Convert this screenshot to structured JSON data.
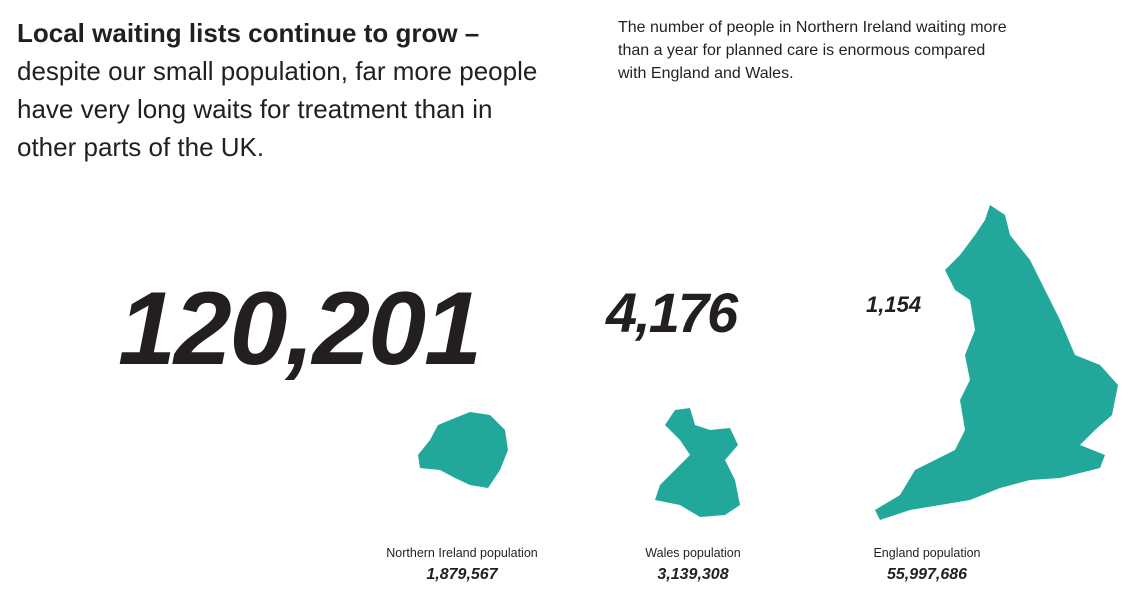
{
  "headline": {
    "bold": "Local waiting lists continue to grow –",
    "text": "despite our small population, far more people have very long waits for treatment than in other parts of the UK."
  },
  "description": "The number of people in Northern Ireland waiting more than a year for planned care is enormous compared with England and Wales.",
  "regions": [
    {
      "count": "120,201",
      "population_label": "Northern Ireland population",
      "population": "1,879,567"
    },
    {
      "count": "4,176",
      "population_label": "Wales population",
      "population": "3,139,308"
    },
    {
      "count": "1,154",
      "population_label": "England population",
      "population": "55,997,686"
    }
  ]
}
